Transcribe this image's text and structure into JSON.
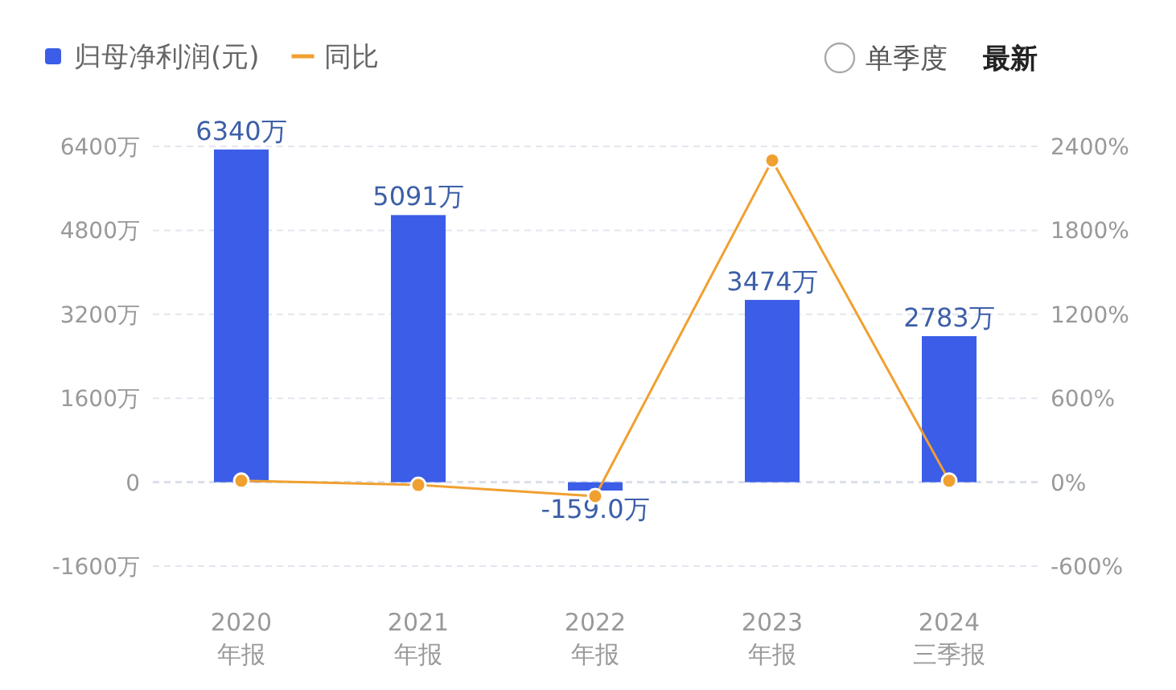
{
  "chart_data": {
    "type": "bar",
    "categories": [
      "2020\n年报",
      "2021\n年报",
      "2022\n年报",
      "2023\n年报",
      "2024\n三季报"
    ],
    "series": [
      {
        "name": "归母净利润(元)",
        "color": "#3b5de7",
        "values": [
          6340,
          5091,
          -159.0,
          3474,
          2783
        ],
        "value_labels": [
          "6340万",
          "5091万",
          "-159.0万",
          "3474万",
          "2783万"
        ]
      },
      {
        "name": "同比",
        "type": "line",
        "axis": "y2",
        "color": "#f0a030",
        "marker": "circle",
        "values": [
          10,
          -20,
          -100,
          2300,
          10
        ]
      }
    ],
    "ylim": [
      -1600,
      6400
    ],
    "yticks": [
      {
        "value": -1600,
        "label": "-1600万"
      },
      0,
      {
        "value": 1600,
        "label": "1600万"
      },
      {
        "value": 3200,
        "label": "3200万"
      },
      {
        "value": 4800,
        "label": "4800万"
      },
      {
        "value": 6400,
        "label": "6400万"
      }
    ],
    "y2lim": [
      -600,
      2400
    ],
    "y2ticks": [
      {
        "value": -600,
        "label": "-600%"
      },
      {
        "value": 0,
        "label": "0%"
      },
      {
        "value": 600,
        "label": "600%"
      },
      {
        "value": 1200,
        "label": "1200%"
      },
      {
        "value": 1800,
        "label": "1800%"
      },
      {
        "value": 2400,
        "label": "2400%"
      }
    ],
    "grid": "y",
    "ref_lines": [
      {
        "axis": "y",
        "value": 0,
        "color": "#8fa0c8",
        "line_style": "dashed"
      }
    ],
    "legend": "top left",
    "annotations": [
      "单季度",
      "最新"
    ]
  }
}
